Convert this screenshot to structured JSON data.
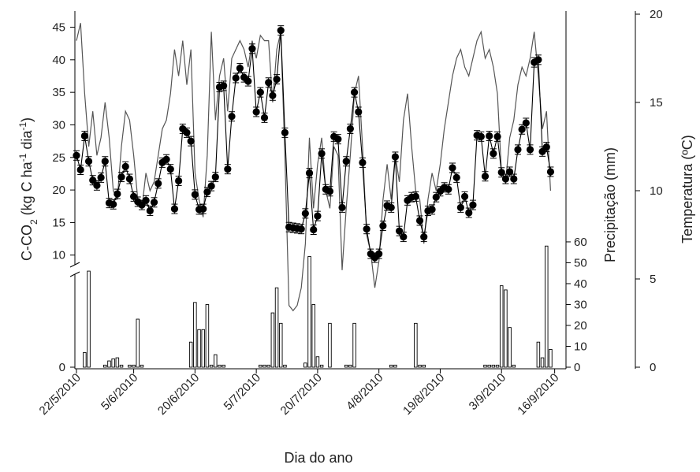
{
  "chart_data": {
    "type": "line",
    "xlabel": "Dia do ano",
    "ylabel_left_main": "C-CO",
    "ylabel_left_sub": "2",
    "ylabel_left_rest": " (kg C ha",
    "ylabel_left_sup1": "-1",
    "ylabel_left_mid": " dia",
    "ylabel_left_sup2": "-1",
    "ylabel_left_end": ")",
    "ylabel_right_precip": "Precipitação (mm)",
    "ylabel_right_temp": "Temperatura (ºC)",
    "x_tick_labels": [
      "22/5/2010",
      "5/6/2010",
      "20/6/2010",
      "5/7/2010",
      "20/7/2010",
      "4/8/2010",
      "19/8/2010",
      "3/9/2010",
      "16/9/2010"
    ],
    "x_tick_days": [
      0,
      14,
      29,
      44,
      59,
      74,
      89,
      104,
      117
    ],
    "x_range_days": [
      0,
      119
    ],
    "co2_ticks": [
      10,
      15,
      20,
      25,
      30,
      35,
      40,
      45
    ],
    "co2_range": [
      9,
      47
    ],
    "precip_ticks": [
      0,
      10,
      20,
      30,
      40,
      50,
      60
    ],
    "precip_range": [
      0,
      63
    ],
    "temp_ticks": [
      0,
      5,
      10,
      15,
      20
    ],
    "temp_range": [
      0,
      20
    ],
    "series": [
      {
        "name": "C-CO2",
        "color": "#000000",
        "points": [
          [
            0,
            25.3
          ],
          [
            1,
            23.1
          ],
          [
            2,
            28.3
          ],
          [
            3,
            24.4
          ],
          [
            4,
            21.5
          ],
          [
            5,
            20.7
          ],
          [
            6,
            21.9
          ],
          [
            7,
            24.4
          ],
          [
            8,
            18.0
          ],
          [
            9,
            17.8
          ],
          [
            10,
            19.4
          ],
          [
            11,
            22.0
          ],
          [
            12,
            23.6
          ],
          [
            13,
            21.7
          ],
          [
            14,
            19.0
          ],
          [
            15,
            18.2
          ],
          [
            16,
            17.7
          ],
          [
            17,
            18.4
          ],
          [
            18,
            16.8
          ],
          [
            19,
            18.1
          ],
          [
            20,
            21.0
          ],
          [
            21,
            24.2
          ],
          [
            22,
            24.7
          ],
          [
            23,
            23.2
          ],
          [
            24,
            17.1
          ],
          [
            25,
            21.4
          ],
          [
            26,
            29.4
          ],
          [
            27,
            28.8
          ],
          [
            28,
            27.5
          ],
          [
            29,
            19.3
          ],
          [
            30,
            17.0
          ],
          [
            31,
            17.1
          ],
          [
            32,
            19.7
          ],
          [
            33,
            20.6
          ],
          [
            34,
            22.0
          ],
          [
            35,
            35.8
          ],
          [
            36,
            36.0
          ],
          [
            37,
            23.2
          ],
          [
            38,
            31.3
          ],
          [
            39,
            37.2
          ],
          [
            40,
            38.7
          ],
          [
            41,
            37.3
          ],
          [
            42,
            36.7
          ],
          [
            43,
            41.7
          ],
          [
            44,
            32.0
          ],
          [
            45,
            35.0
          ],
          [
            46,
            31.1
          ],
          [
            47,
            36.5
          ],
          [
            48,
            34.5
          ],
          [
            49,
            37.0
          ],
          [
            50,
            44.5
          ],
          [
            51,
            28.8
          ],
          [
            52,
            14.3
          ],
          [
            53,
            14.2
          ],
          [
            54,
            14.1
          ],
          [
            55,
            14.0
          ],
          [
            56,
            16.4
          ],
          [
            57,
            22.6
          ],
          [
            58,
            13.9
          ],
          [
            59,
            16.0
          ],
          [
            60,
            25.6
          ],
          [
            61,
            20.1
          ],
          [
            62,
            19.8
          ],
          [
            63,
            28.2
          ],
          [
            64,
            27.8
          ],
          [
            65,
            17.3
          ],
          [
            66,
            24.4
          ],
          [
            67,
            29.4
          ],
          [
            68,
            35.0
          ],
          [
            69,
            32.0
          ],
          [
            70,
            24.2
          ],
          [
            71,
            14.0
          ],
          [
            72,
            10.2
          ],
          [
            73,
            9.6
          ],
          [
            74,
            10.2
          ],
          [
            75,
            14.5
          ],
          [
            76,
            17.6
          ],
          [
            77,
            17.3
          ],
          [
            78,
            25.1
          ],
          [
            79,
            13.7
          ],
          [
            80,
            12.8
          ],
          [
            81,
            18.4
          ],
          [
            82,
            18.9
          ],
          [
            83,
            19.0
          ],
          [
            84,
            15.3
          ],
          [
            85,
            12.8
          ],
          [
            86,
            16.8
          ],
          [
            87,
            17.0
          ],
          [
            88,
            18.9
          ],
          [
            89,
            19.8
          ],
          [
            90,
            20.4
          ],
          [
            91,
            20.1
          ],
          [
            92,
            23.4
          ],
          [
            93,
            21.9
          ],
          [
            94,
            17.3
          ],
          [
            95,
            19.0
          ],
          [
            96,
            16.5
          ],
          [
            97,
            17.7
          ],
          [
            98,
            28.4
          ],
          [
            99,
            28.2
          ],
          [
            100,
            22.1
          ],
          [
            101,
            28.3
          ],
          [
            102,
            25.6
          ],
          [
            103,
            28.2
          ],
          [
            104,
            22.7
          ],
          [
            105,
            21.7
          ],
          [
            106,
            22.8
          ],
          [
            107,
            21.7
          ],
          [
            108,
            26.2
          ],
          [
            109,
            29.3
          ],
          [
            110,
            30.3
          ],
          [
            111,
            26.2
          ],
          [
            112,
            39.6
          ],
          [
            113,
            40.0
          ],
          [
            114,
            25.9
          ],
          [
            115,
            26.6
          ],
          [
            116,
            22.8
          ]
        ]
      },
      {
        "name": "Temperatura",
        "color": "#555555",
        "points": [
          [
            0,
            18.5
          ],
          [
            1,
            19.5
          ],
          [
            2,
            15.5
          ],
          [
            3,
            12.5
          ],
          [
            4,
            14.5
          ],
          [
            5,
            12.0
          ],
          [
            6,
            13.0
          ],
          [
            7,
            15.0
          ],
          [
            8,
            13.0
          ],
          [
            9,
            10.0
          ],
          [
            10,
            9.5
          ],
          [
            11,
            12.5
          ],
          [
            12,
            14.5
          ],
          [
            13,
            14.0
          ],
          [
            14,
            12.0
          ],
          [
            15,
            9.5
          ],
          [
            16,
            9.0
          ],
          [
            17,
            11.0
          ],
          [
            18,
            10.0
          ],
          [
            19,
            10.5
          ],
          [
            20,
            12.0
          ],
          [
            21,
            13.5
          ],
          [
            22,
            14.0
          ],
          [
            23,
            15.5
          ],
          [
            24,
            18.0
          ],
          [
            25,
            16.5
          ],
          [
            26,
            18.5
          ],
          [
            27,
            16.0
          ],
          [
            28,
            18.0
          ],
          [
            29,
            11.0
          ],
          [
            30,
            9.5
          ],
          [
            31,
            8.5
          ],
          [
            32,
            12.0
          ],
          [
            33,
            19.0
          ],
          [
            34,
            14.0
          ],
          [
            35,
            16.5
          ],
          [
            36,
            17.5
          ],
          [
            37,
            14.5
          ],
          [
            38,
            17.5
          ],
          [
            39,
            18.0
          ],
          [
            40,
            18.5
          ],
          [
            41,
            18.0
          ],
          [
            42,
            17.0
          ],
          [
            43,
            18.5
          ],
          [
            44,
            17.5
          ],
          [
            45,
            18.8
          ],
          [
            46,
            18.5
          ],
          [
            47,
            18.5
          ],
          [
            48,
            15.0
          ],
          [
            49,
            18.0
          ],
          [
            50,
            19.0
          ],
          [
            51,
            12.0
          ],
          [
            52,
            3.5
          ],
          [
            53,
            3.2
          ],
          [
            54,
            3.5
          ],
          [
            55,
            4.5
          ],
          [
            56,
            7.0
          ],
          [
            57,
            13.0
          ],
          [
            58,
            9.0
          ],
          [
            59,
            11.5
          ],
          [
            60,
            13.0
          ],
          [
            61,
            10.0
          ],
          [
            62,
            9.0
          ],
          [
            63,
            12.5
          ],
          [
            64,
            12.0
          ],
          [
            65,
            5.5
          ],
          [
            66,
            9.0
          ],
          [
            67,
            12.0
          ],
          [
            68,
            15.5
          ],
          [
            69,
            16.5
          ],
          [
            70,
            12.5
          ],
          [
            71,
            7.5
          ],
          [
            72,
            6.5
          ],
          [
            73,
            4.5
          ],
          [
            74,
            6.0
          ],
          [
            75,
            9.5
          ],
          [
            76,
            11.5
          ],
          [
            77,
            9.5
          ],
          [
            78,
            12.0
          ],
          [
            79,
            10.5
          ],
          [
            80,
            14.0
          ],
          [
            81,
            15.5
          ],
          [
            82,
            12.5
          ],
          [
            83,
            10.0
          ],
          [
            84,
            9.5
          ],
          [
            85,
            7.0
          ],
          [
            86,
            9.5
          ],
          [
            87,
            11.0
          ],
          [
            88,
            10.0
          ],
          [
            89,
            11.5
          ],
          [
            90,
            13.5
          ],
          [
            91,
            15.0
          ],
          [
            92,
            16.5
          ],
          [
            93,
            17.5
          ],
          [
            94,
            18.0
          ],
          [
            95,
            17.0
          ],
          [
            96,
            16.5
          ],
          [
            97,
            17.5
          ],
          [
            98,
            18.5
          ],
          [
            99,
            19.0
          ],
          [
            100,
            17.5
          ],
          [
            101,
            18.0
          ],
          [
            102,
            17.0
          ],
          [
            103,
            15.5
          ],
          [
            104,
            11.0
          ],
          [
            105,
            10.5
          ],
          [
            106,
            13.0
          ],
          [
            107,
            14.0
          ],
          [
            108,
            16.0
          ],
          [
            109,
            17.0
          ],
          [
            110,
            16.5
          ],
          [
            111,
            17.5
          ],
          [
            112,
            19.0
          ],
          [
            113,
            16.5
          ],
          [
            114,
            13.5
          ],
          [
            115,
            14.5
          ],
          [
            116,
            10.0
          ]
        ]
      }
    ],
    "precipitation": [
      [
        2,
        7
      ],
      [
        3,
        46
      ],
      [
        7,
        1
      ],
      [
        8,
        3
      ],
      [
        9,
        4
      ],
      [
        10,
        4.5
      ],
      [
        11,
        1
      ],
      [
        13,
        1
      ],
      [
        14,
        1
      ],
      [
        15,
        23
      ],
      [
        16,
        1
      ],
      [
        28,
        12
      ],
      [
        29,
        31
      ],
      [
        30,
        18
      ],
      [
        31,
        18
      ],
      [
        32,
        30
      ],
      [
        33,
        1
      ],
      [
        34,
        6
      ],
      [
        35,
        1
      ],
      [
        36,
        1
      ],
      [
        45,
        1
      ],
      [
        46,
        1
      ],
      [
        47,
        1
      ],
      [
        48,
        26
      ],
      [
        49,
        38
      ],
      [
        50,
        21
      ],
      [
        51,
        1
      ],
      [
        56,
        2
      ],
      [
        57,
        53
      ],
      [
        58,
        30
      ],
      [
        59,
        5
      ],
      [
        60,
        1
      ],
      [
        62,
        21
      ],
      [
        66,
        1
      ],
      [
        67,
        1
      ],
      [
        68,
        21
      ],
      [
        77,
        1
      ],
      [
        78,
        1
      ],
      [
        83,
        21
      ],
      [
        84,
        1
      ],
      [
        85,
        1
      ],
      [
        100,
        1
      ],
      [
        101,
        1
      ],
      [
        102,
        1
      ],
      [
        103,
        1
      ],
      [
        104,
        39
      ],
      [
        105,
        37
      ],
      [
        106,
        19
      ],
      [
        107,
        1
      ],
      [
        113,
        12
      ],
      [
        114,
        4.5
      ],
      [
        115,
        58
      ],
      [
        116,
        8.5
      ]
    ],
    "grid": false,
    "legend": "none"
  }
}
